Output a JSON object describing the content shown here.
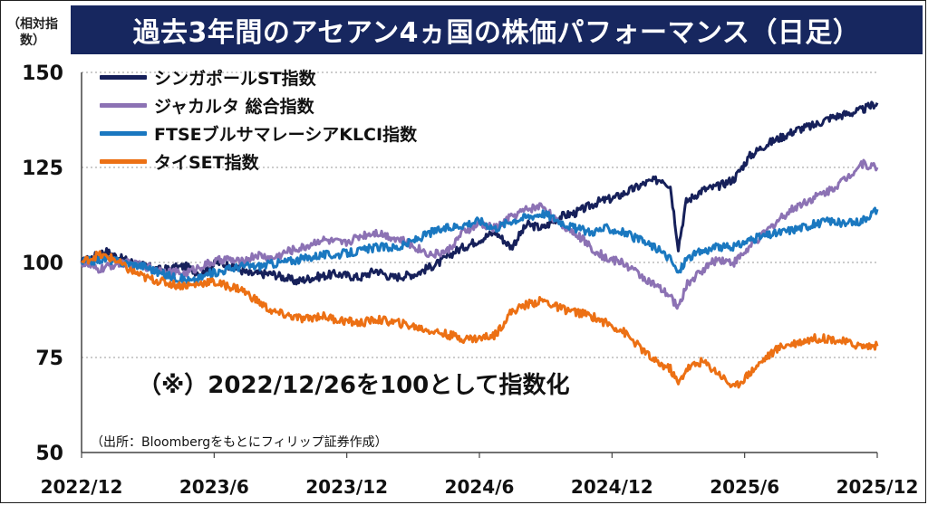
{
  "title": "過去3年間のアセアン4ヵ国の株価パフォーマンス（日足）",
  "annotation": "（※）2022/12/26を100として指数化",
  "source": "（出所：Bloombergをもとにフィリップ証券作成）",
  "chart_data": {
    "type": "line",
    "title": "過去3年間のアセアン4ヵ国の株価パフォーマンス（日足）",
    "ylabel": "（相対指数）",
    "xlabel": "",
    "ylim": [
      50,
      150
    ],
    "yticks": [
      "150",
      "125",
      "100",
      "75",
      "50"
    ],
    "x_ticks": [
      "2022/12",
      "2023/6",
      "2023/12",
      "2024/6",
      "2024/12",
      "2025/6",
      "2025/12"
    ],
    "grid": true,
    "legend_position": "top-left",
    "series": [
      {
        "name": "シンガポールST指数",
        "color": "#16205a",
        "points": [
          [
            0,
            100
          ],
          [
            0.03,
            103
          ],
          [
            0.05,
            101
          ],
          [
            0.08,
            99
          ],
          [
            0.1,
            98
          ],
          [
            0.13,
            99
          ],
          [
            0.15,
            97
          ],
          [
            0.17,
            100
          ],
          [
            0.19,
            99
          ],
          [
            0.21,
            97
          ],
          [
            0.24,
            97
          ],
          [
            0.27,
            95
          ],
          [
            0.29,
            96
          ],
          [
            0.32,
            97
          ],
          [
            0.35,
            96
          ],
          [
            0.37,
            98
          ],
          [
            0.39,
            96
          ],
          [
            0.42,
            97
          ],
          [
            0.45,
            100
          ],
          [
            0.47,
            103
          ],
          [
            0.5,
            106
          ],
          [
            0.52,
            108
          ],
          [
            0.54,
            104
          ],
          [
            0.56,
            110
          ],
          [
            0.58,
            109
          ],
          [
            0.6,
            112
          ],
          [
            0.62,
            113
          ],
          [
            0.65,
            116
          ],
          [
            0.67,
            117
          ],
          [
            0.69,
            119
          ],
          [
            0.71,
            121
          ],
          [
            0.73,
            122
          ],
          [
            0.74,
            120
          ],
          [
            0.75,
            104
          ],
          [
            0.76,
            116
          ],
          [
            0.78,
            119
          ],
          [
            0.8,
            120
          ],
          [
            0.82,
            122
          ],
          [
            0.84,
            128
          ],
          [
            0.86,
            131
          ],
          [
            0.88,
            133
          ],
          [
            0.9,
            135
          ],
          [
            0.92,
            136
          ],
          [
            0.94,
            138
          ],
          [
            0.96,
            139
          ],
          [
            0.98,
            140
          ],
          [
            1.0,
            142
          ]
        ]
      },
      {
        "name": "ジャカルタ 総合指数",
        "color": "#8c72b4",
        "points": [
          [
            0,
            100
          ],
          [
            0.02,
            98
          ],
          [
            0.05,
            100
          ],
          [
            0.08,
            99
          ],
          [
            0.1,
            98
          ],
          [
            0.13,
            97
          ],
          [
            0.15,
            99
          ],
          [
            0.18,
            101
          ],
          [
            0.2,
            100
          ],
          [
            0.22,
            102
          ],
          [
            0.24,
            101
          ],
          [
            0.26,
            103
          ],
          [
            0.28,
            104
          ],
          [
            0.3,
            106
          ],
          [
            0.33,
            105
          ],
          [
            0.35,
            107
          ],
          [
            0.37,
            108
          ],
          [
            0.4,
            106
          ],
          [
            0.42,
            104
          ],
          [
            0.44,
            102
          ],
          [
            0.46,
            103
          ],
          [
            0.48,
            108
          ],
          [
            0.5,
            110
          ],
          [
            0.52,
            109
          ],
          [
            0.54,
            112
          ],
          [
            0.56,
            114
          ],
          [
            0.58,
            115
          ],
          [
            0.6,
            110
          ],
          [
            0.62,
            108
          ],
          [
            0.64,
            104
          ],
          [
            0.66,
            101
          ],
          [
            0.68,
            100
          ],
          [
            0.7,
            97
          ],
          [
            0.72,
            94
          ],
          [
            0.74,
            91
          ],
          [
            0.75,
            88
          ],
          [
            0.76,
            94
          ],
          [
            0.78,
            98
          ],
          [
            0.8,
            101
          ],
          [
            0.82,
            100
          ],
          [
            0.84,
            104
          ],
          [
            0.86,
            108
          ],
          [
            0.88,
            112
          ],
          [
            0.9,
            115
          ],
          [
            0.92,
            117
          ],
          [
            0.94,
            119
          ],
          [
            0.96,
            122
          ],
          [
            0.98,
            126
          ],
          [
            1.0,
            125
          ]
        ]
      },
      {
        "name": "FTSEブルサマレーシアKLCI指数",
        "color": "#1a78c0",
        "points": [
          [
            0,
            100
          ],
          [
            0.03,
            101
          ],
          [
            0.05,
            100
          ],
          [
            0.08,
            99
          ],
          [
            0.1,
            97
          ],
          [
            0.12,
            96
          ],
          [
            0.14,
            95
          ],
          [
            0.16,
            97
          ],
          [
            0.18,
            98
          ],
          [
            0.2,
            99
          ],
          [
            0.22,
            99
          ],
          [
            0.25,
            100
          ],
          [
            0.28,
            101
          ],
          [
            0.3,
            102
          ],
          [
            0.32,
            102
          ],
          [
            0.35,
            103
          ],
          [
            0.37,
            104
          ],
          [
            0.4,
            104
          ],
          [
            0.42,
            106
          ],
          [
            0.44,
            108
          ],
          [
            0.46,
            109
          ],
          [
            0.48,
            110
          ],
          [
            0.5,
            111
          ],
          [
            0.52,
            109
          ],
          [
            0.54,
            111
          ],
          [
            0.56,
            112
          ],
          [
            0.58,
            113
          ],
          [
            0.6,
            111
          ],
          [
            0.62,
            109
          ],
          [
            0.64,
            108
          ],
          [
            0.66,
            109
          ],
          [
            0.68,
            108
          ],
          [
            0.7,
            106
          ],
          [
            0.72,
            104
          ],
          [
            0.74,
            101
          ],
          [
            0.75,
            97
          ],
          [
            0.76,
            101
          ],
          [
            0.78,
            103
          ],
          [
            0.8,
            104
          ],
          [
            0.82,
            104
          ],
          [
            0.84,
            106
          ],
          [
            0.86,
            107
          ],
          [
            0.88,
            108
          ],
          [
            0.9,
            109
          ],
          [
            0.92,
            110
          ],
          [
            0.94,
            111
          ],
          [
            0.96,
            110
          ],
          [
            0.98,
            111
          ],
          [
            1.0,
            114
          ]
        ]
      },
      {
        "name": "タイSET指数",
        "color": "#ec7014",
        "points": [
          [
            0,
            100
          ],
          [
            0.02,
            102
          ],
          [
            0.04,
            101
          ],
          [
            0.06,
            98
          ],
          [
            0.08,
            96
          ],
          [
            0.1,
            95
          ],
          [
            0.12,
            94
          ],
          [
            0.14,
            94
          ],
          [
            0.16,
            95
          ],
          [
            0.18,
            94
          ],
          [
            0.2,
            93
          ],
          [
            0.22,
            90
          ],
          [
            0.24,
            87
          ],
          [
            0.26,
            86
          ],
          [
            0.28,
            85
          ],
          [
            0.3,
            86
          ],
          [
            0.32,
            85
          ],
          [
            0.35,
            84
          ],
          [
            0.37,
            85
          ],
          [
            0.4,
            84
          ],
          [
            0.42,
            83
          ],
          [
            0.44,
            82
          ],
          [
            0.46,
            81
          ],
          [
            0.48,
            80
          ],
          [
            0.5,
            80
          ],
          [
            0.52,
            81
          ],
          [
            0.54,
            87
          ],
          [
            0.56,
            89
          ],
          [
            0.58,
            90
          ],
          [
            0.6,
            88
          ],
          [
            0.62,
            87
          ],
          [
            0.64,
            86
          ],
          [
            0.66,
            84
          ],
          [
            0.68,
            82
          ],
          [
            0.7,
            78
          ],
          [
            0.72,
            74
          ],
          [
            0.74,
            72
          ],
          [
            0.75,
            68
          ],
          [
            0.76,
            72
          ],
          [
            0.78,
            74
          ],
          [
            0.8,
            71
          ],
          [
            0.82,
            67
          ],
          [
            0.84,
            71
          ],
          [
            0.86,
            75
          ],
          [
            0.88,
            78
          ],
          [
            0.9,
            79
          ],
          [
            0.92,
            80
          ],
          [
            0.94,
            80
          ],
          [
            0.96,
            79
          ],
          [
            0.98,
            78
          ],
          [
            1.0,
            78
          ]
        ]
      }
    ]
  }
}
